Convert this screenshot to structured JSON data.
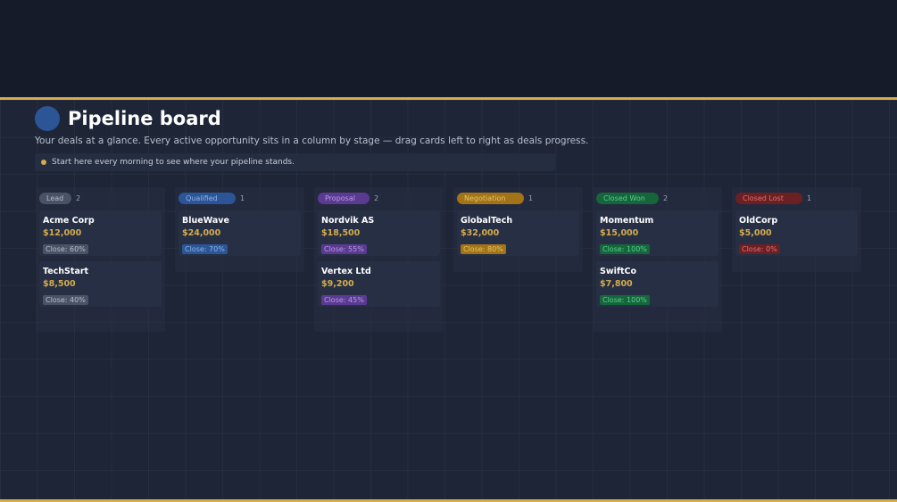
{
  "header": {
    "title": "Pipeline board",
    "subtitle": "Your deals at a glance. Every active opportunity sits in a column by stage — drag cards left to right as deals progress.",
    "tip": "Start here every morning to see where your pipeline stands."
  },
  "colors": {
    "accent": "#d4ac4e"
  },
  "columns": [
    {
      "stage": "Lead",
      "count": "2",
      "pill_bg": "#4a5366",
      "pill_fg": "#b7becb",
      "pill_w": 36,
      "deals": [
        {
          "name": "Acme Corp",
          "amount": "$12,000",
          "close": "Close: 60%"
        },
        {
          "name": "TechStart",
          "amount": "$8,500",
          "close": "Close: 40%"
        }
      ]
    },
    {
      "stage": "Qualified",
      "count": "1",
      "pill_bg": "#2b5597",
      "pill_fg": "#8fb3e6",
      "pill_w": 64,
      "deals": [
        {
          "name": "BlueWave",
          "amount": "$24,000",
          "close": "Close: 70%"
        }
      ]
    },
    {
      "stage": "Proposal",
      "count": "2",
      "pill_bg": "#5b3a92",
      "pill_fg": "#b89ae6",
      "pill_w": 58,
      "deals": [
        {
          "name": "Nordvik AS",
          "amount": "$18,500",
          "close": "Close: 55%"
        },
        {
          "name": "Vertex Ltd",
          "amount": "$9,200",
          "close": "Close: 45%"
        }
      ]
    },
    {
      "stage": "Negotiation",
      "count": "1",
      "pill_bg": "#a37417",
      "pill_fg": "#e6c26a",
      "pill_w": 75,
      "deals": [
        {
          "name": "GlobalTech",
          "amount": "$32,000",
          "close": "Close: 80%"
        }
      ]
    },
    {
      "stage": "Closed Won",
      "count": "2",
      "pill_bg": "#17653d",
      "pill_fg": "#56d18c",
      "pill_w": 70,
      "deals": [
        {
          "name": "Momentum",
          "amount": "$15,000",
          "close": "Close: 100%"
        },
        {
          "name": "SwiftCo",
          "amount": "$7,800",
          "close": "Close: 100%"
        }
      ]
    },
    {
      "stage": "Closed Lost",
      "count": "1",
      "pill_bg": "#6b2024",
      "pill_fg": "#e07070",
      "pill_w": 75,
      "deals": [
        {
          "name": "OldCorp",
          "amount": "$5,000",
          "close": "Close: 0%"
        }
      ]
    }
  ]
}
